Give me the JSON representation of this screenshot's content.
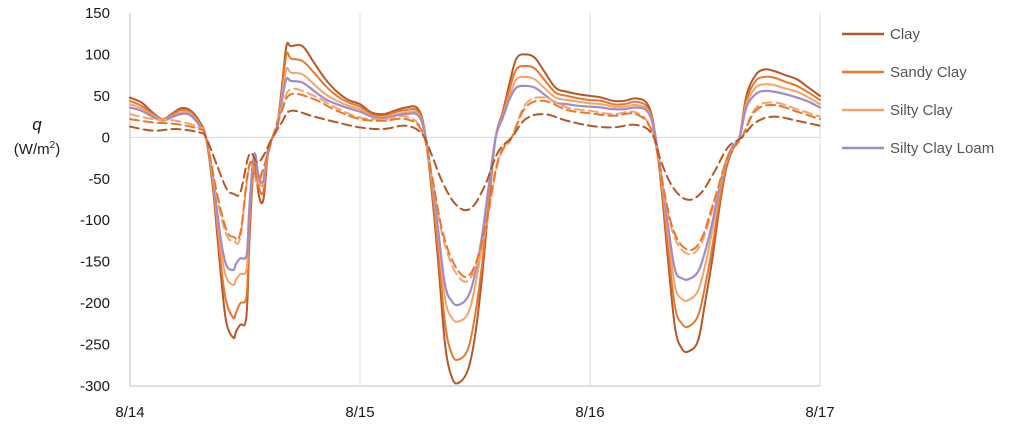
{
  "chart_data": {
    "type": "line",
    "title": "",
    "xlabel": "",
    "ylabel": "q",
    "ylabel_unit_prefix": "(W/m",
    "ylabel_unit_sup": "2",
    "ylabel_unit_suffix": ")",
    "ylim": [
      -300,
      150
    ],
    "yticks": [
      150,
      100,
      50,
      0,
      -50,
      -100,
      -150,
      -200,
      -250,
      -300
    ],
    "xlim": [
      0,
      3
    ],
    "xticks": [
      {
        "value": 0,
        "label": "8/14"
      },
      {
        "value": 1,
        "label": "8/15"
      },
      {
        "value": 2,
        "label": "8/16"
      },
      {
        "value": 3,
        "label": "8/17"
      }
    ],
    "grid": "vertical",
    "legend_position": "right",
    "series": [
      {
        "name": "Clay",
        "color": "#B4582A",
        "style": "solid",
        "width": 2.0,
        "in_legend": true,
        "x": [
          0,
          0.05,
          0.09,
          0.14,
          0.18,
          0.22,
          0.26,
          0.3,
          0.33,
          0.36,
          0.38,
          0.4,
          0.42,
          0.45,
          0.46,
          0.48,
          0.5,
          0.51,
          0.52,
          0.54,
          0.56,
          0.58,
          0.6,
          0.62,
          0.64,
          0.66,
          0.68,
          0.7,
          0.75,
          0.8,
          0.85,
          0.9,
          0.95,
          1.0,
          1.05,
          1.1,
          1.15,
          1.2,
          1.25,
          1.28,
          1.31,
          1.34,
          1.37,
          1.4,
          1.43,
          1.47,
          1.5,
          1.53,
          1.56,
          1.59,
          1.62,
          1.65,
          1.68,
          1.72,
          1.76,
          1.8,
          1.85,
          1.9,
          1.95,
          2.0,
          2.05,
          2.1,
          2.15,
          2.2,
          2.25,
          2.28,
          2.31,
          2.34,
          2.37,
          2.4,
          2.43,
          2.47,
          2.5,
          2.53,
          2.56,
          2.59,
          2.62,
          2.65,
          2.68,
          2.72,
          2.76,
          2.8,
          2.85,
          2.9,
          2.95,
          3.0
        ],
        "y": [
          48,
          42,
          32,
          22,
          28,
          35,
          33,
          20,
          0,
          -60,
          -120,
          -180,
          -225,
          -242,
          -235,
          -226,
          -225,
          -200,
          -120,
          -30,
          -70,
          -75,
          -20,
          0,
          15,
          60,
          110,
          110,
          110,
          90,
          70,
          55,
          45,
          40,
          30,
          28,
          32,
          36,
          35,
          10,
          -60,
          -150,
          -250,
          -290,
          -296,
          -280,
          -240,
          -170,
          -80,
          0,
          30,
          65,
          95,
          100,
          96,
          80,
          60,
          55,
          52,
          50,
          48,
          44,
          44,
          47,
          40,
          10,
          -60,
          -150,
          -230,
          -255,
          -258,
          -245,
          -200,
          -150,
          -90,
          -40,
          -15,
          0,
          50,
          75,
          82,
          80,
          75,
          70,
          60,
          50
        ]
      },
      {
        "name": "Sandy Clay",
        "color": "#E8772E",
        "style": "solid",
        "width": 2.0,
        "in_legend": true,
        "x": [
          0,
          0.05,
          0.09,
          0.14,
          0.18,
          0.22,
          0.26,
          0.3,
          0.33,
          0.36,
          0.38,
          0.4,
          0.42,
          0.45,
          0.46,
          0.48,
          0.5,
          0.51,
          0.52,
          0.54,
          0.56,
          0.58,
          0.6,
          0.62,
          0.64,
          0.66,
          0.68,
          0.7,
          0.75,
          0.8,
          0.85,
          0.9,
          0.95,
          1.0,
          1.05,
          1.1,
          1.15,
          1.2,
          1.25,
          1.28,
          1.31,
          1.34,
          1.37,
          1.4,
          1.43,
          1.47,
          1.5,
          1.53,
          1.56,
          1.59,
          1.62,
          1.65,
          1.68,
          1.72,
          1.76,
          1.8,
          1.85,
          1.9,
          1.95,
          2.0,
          2.05,
          2.1,
          2.15,
          2.2,
          2.25,
          2.28,
          2.31,
          2.34,
          2.37,
          2.4,
          2.43,
          2.47,
          2.5,
          2.53,
          2.56,
          2.59,
          2.62,
          2.65,
          2.68,
          2.72,
          2.76,
          2.8,
          2.85,
          2.9,
          2.95,
          3.0
        ],
        "y": [
          44,
          38,
          30,
          22,
          27,
          33,
          31,
          18,
          0,
          -55,
          -110,
          -165,
          -200,
          -218,
          -212,
          -200,
          -198,
          -180,
          -105,
          -25,
          -60,
          -65,
          -18,
          0,
          14,
          55,
          100,
          95,
          92,
          78,
          62,
          50,
          42,
          37,
          28,
          26,
          30,
          33,
          32,
          9,
          -55,
          -135,
          -225,
          -262,
          -268,
          -255,
          -215,
          -155,
          -72,
          0,
          28,
          58,
          82,
          86,
          83,
          70,
          54,
          50,
          47,
          45,
          44,
          40,
          40,
          43,
          36,
          9,
          -55,
          -135,
          -205,
          -225,
          -228,
          -215,
          -180,
          -135,
          -82,
          -36,
          -13,
          0,
          45,
          68,
          73,
          72,
          67,
          62,
          54,
          45
        ]
      },
      {
        "name": "Silty Clay",
        "color": "#F4A36B",
        "style": "solid",
        "width": 2.0,
        "in_legend": true,
        "x": [
          0,
          0.05,
          0.09,
          0.14,
          0.18,
          0.22,
          0.26,
          0.3,
          0.33,
          0.36,
          0.38,
          0.4,
          0.42,
          0.45,
          0.46,
          0.48,
          0.5,
          0.51,
          0.52,
          0.54,
          0.56,
          0.58,
          0.6,
          0.62,
          0.64,
          0.66,
          0.68,
          0.7,
          0.75,
          0.8,
          0.85,
          0.9,
          0.95,
          1.0,
          1.05,
          1.1,
          1.15,
          1.2,
          1.25,
          1.28,
          1.31,
          1.34,
          1.37,
          1.4,
          1.43,
          1.47,
          1.5,
          1.53,
          1.56,
          1.59,
          1.62,
          1.65,
          1.68,
          1.72,
          1.76,
          1.8,
          1.85,
          1.9,
          1.95,
          2.0,
          2.05,
          2.1,
          2.15,
          2.2,
          2.25,
          2.28,
          2.31,
          2.34,
          2.37,
          2.4,
          2.43,
          2.47,
          2.5,
          2.53,
          2.56,
          2.59,
          2.62,
          2.65,
          2.68,
          2.72,
          2.76,
          2.8,
          2.85,
          2.9,
          2.95,
          3.0
        ],
        "y": [
          40,
          35,
          28,
          21,
          25,
          30,
          29,
          16,
          0,
          -50,
          -100,
          -145,
          -170,
          -178,
          -172,
          -165,
          -164,
          -150,
          -88,
          -22,
          -52,
          -56,
          -16,
          0,
          12,
          48,
          82,
          78,
          76,
          64,
          52,
          44,
          38,
          34,
          26,
          24,
          27,
          30,
          29,
          8,
          -48,
          -120,
          -195,
          -218,
          -222,
          -212,
          -180,
          -130,
          -62,
          0,
          25,
          50,
          70,
          73,
          70,
          60,
          48,
          45,
          43,
          41,
          40,
          37,
          37,
          39,
          33,
          8,
          -48,
          -118,
          -180,
          -195,
          -196,
          -185,
          -155,
          -115,
          -70,
          -32,
          -12,
          0,
          40,
          60,
          64,
          63,
          59,
          55,
          48,
          40
        ]
      },
      {
        "name": "Silty Clay Loam",
        "color": "#A08DC8",
        "style": "solid",
        "width": 2.2,
        "in_legend": true,
        "x": [
          0,
          0.05,
          0.09,
          0.14,
          0.18,
          0.22,
          0.26,
          0.3,
          0.33,
          0.36,
          0.38,
          0.4,
          0.42,
          0.45,
          0.46,
          0.48,
          0.5,
          0.51,
          0.52,
          0.54,
          0.56,
          0.58,
          0.6,
          0.62,
          0.64,
          0.66,
          0.68,
          0.7,
          0.75,
          0.8,
          0.85,
          0.9,
          0.95,
          1.0,
          1.05,
          1.1,
          1.15,
          1.2,
          1.25,
          1.28,
          1.31,
          1.34,
          1.37,
          1.4,
          1.43,
          1.47,
          1.5,
          1.53,
          1.56,
          1.59,
          1.62,
          1.65,
          1.68,
          1.72,
          1.76,
          1.8,
          1.85,
          1.9,
          1.95,
          2.0,
          2.05,
          2.1,
          2.15,
          2.2,
          2.25,
          2.28,
          2.31,
          2.34,
          2.37,
          2.4,
          2.43,
          2.47,
          2.5,
          2.53,
          2.56,
          2.59,
          2.62,
          2.65,
          2.68,
          2.72,
          2.76,
          2.8,
          2.85,
          2.9,
          2.95,
          3.0
        ],
        "y": [
          36,
          32,
          26,
          20,
          24,
          28,
          27,
          15,
          0,
          -47,
          -92,
          -132,
          -155,
          -160,
          -153,
          -146,
          -146,
          -135,
          -80,
          -20,
          -48,
          -52,
          -15,
          0,
          11,
          44,
          70,
          68,
          66,
          56,
          46,
          40,
          35,
          31,
          25,
          23,
          26,
          28,
          27,
          7,
          -45,
          -112,
          -178,
          -198,
          -202,
          -192,
          -165,
          -120,
          -58,
          0,
          23,
          46,
          60,
          62,
          60,
          52,
          42,
          40,
          38,
          37,
          36,
          34,
          34,
          36,
          31,
          7,
          -45,
          -108,
          -160,
          -170,
          -171,
          -162,
          -138,
          -105,
          -65,
          -30,
          -11,
          0,
          36,
          52,
          56,
          55,
          52,
          48,
          43,
          36
        ]
      },
      {
        "name": "",
        "color": "#F4A36B",
        "style": "dashed",
        "width": 2.0,
        "in_legend": false,
        "x": [
          0,
          0.1,
          0.2,
          0.3,
          0.33,
          0.38,
          0.42,
          0.45,
          0.48,
          0.52,
          0.56,
          0.62,
          0.66,
          0.7,
          0.8,
          0.9,
          1.0,
          1.1,
          1.2,
          1.27,
          1.31,
          1.36,
          1.42,
          1.48,
          1.54,
          1.6,
          1.66,
          1.72,
          1.8,
          1.9,
          2.0,
          2.1,
          2.2,
          2.27,
          2.31,
          2.36,
          2.42,
          2.48,
          2.54,
          2.6,
          2.66,
          2.72,
          2.8,
          2.9,
          3.0
        ],
        "y": [
          28,
          22,
          20,
          12,
          0,
          -75,
          -118,
          -124,
          -120,
          -35,
          -55,
          0,
          36,
          58,
          50,
          35,
          24,
          22,
          25,
          8,
          -45,
          -120,
          -165,
          -170,
          -120,
          -30,
          0,
          40,
          48,
          36,
          32,
          28,
          30,
          8,
          -50,
          -115,
          -140,
          -130,
          -80,
          -25,
          0,
          35,
          42,
          34,
          25
        ]
      },
      {
        "name": "",
        "color": "#E8772E",
        "style": "dashed",
        "width": 2.0,
        "in_legend": false,
        "x": [
          0,
          0.1,
          0.2,
          0.3,
          0.33,
          0.38,
          0.42,
          0.45,
          0.48,
          0.52,
          0.56,
          0.62,
          0.66,
          0.7,
          0.8,
          0.9,
          1.0,
          1.1,
          1.2,
          1.27,
          1.31,
          1.36,
          1.42,
          1.48,
          1.54,
          1.6,
          1.66,
          1.72,
          1.8,
          1.9,
          2.0,
          2.1,
          2.2,
          2.27,
          2.31,
          2.36,
          2.42,
          2.48,
          2.54,
          2.6,
          2.66,
          2.72,
          2.8,
          2.9,
          3.0
        ],
        "y": [
          22,
          18,
          16,
          10,
          0,
          -70,
          -112,
          -120,
          -115,
          -32,
          -50,
          0,
          32,
          52,
          46,
          32,
          22,
          20,
          22,
          7,
          -42,
          -115,
          -158,
          -165,
          -115,
          -28,
          0,
          36,
          44,
          33,
          29,
          26,
          28,
          7,
          -47,
          -110,
          -135,
          -125,
          -76,
          -23,
          0,
          32,
          39,
          31,
          22
        ]
      },
      {
        "name": "",
        "color": "#B4582A",
        "style": "dashed",
        "width": 2.0,
        "in_legend": false,
        "x": [
          0,
          0.1,
          0.2,
          0.3,
          0.33,
          0.38,
          0.42,
          0.45,
          0.48,
          0.52,
          0.56,
          0.62,
          0.66,
          0.7,
          0.8,
          0.9,
          1.0,
          1.1,
          1.2,
          1.27,
          1.31,
          1.36,
          1.42,
          1.48,
          1.54,
          1.6,
          1.66,
          1.72,
          1.8,
          1.9,
          2.0,
          2.1,
          2.2,
          2.27,
          2.31,
          2.36,
          2.42,
          2.48,
          2.54,
          2.6,
          2.66,
          2.72,
          2.8,
          2.9,
          3.0
        ],
        "y": [
          13,
          8,
          10,
          6,
          0,
          -35,
          -62,
          -68,
          -66,
          -20,
          -30,
          0,
          18,
          32,
          25,
          18,
          12,
          10,
          14,
          4,
          -20,
          -55,
          -82,
          -86,
          -60,
          -18,
          0,
          22,
          28,
          20,
          14,
          12,
          15,
          4,
          -30,
          -60,
          -75,
          -68,
          -42,
          -12,
          0,
          18,
          25,
          20,
          14
        ]
      }
    ]
  }
}
